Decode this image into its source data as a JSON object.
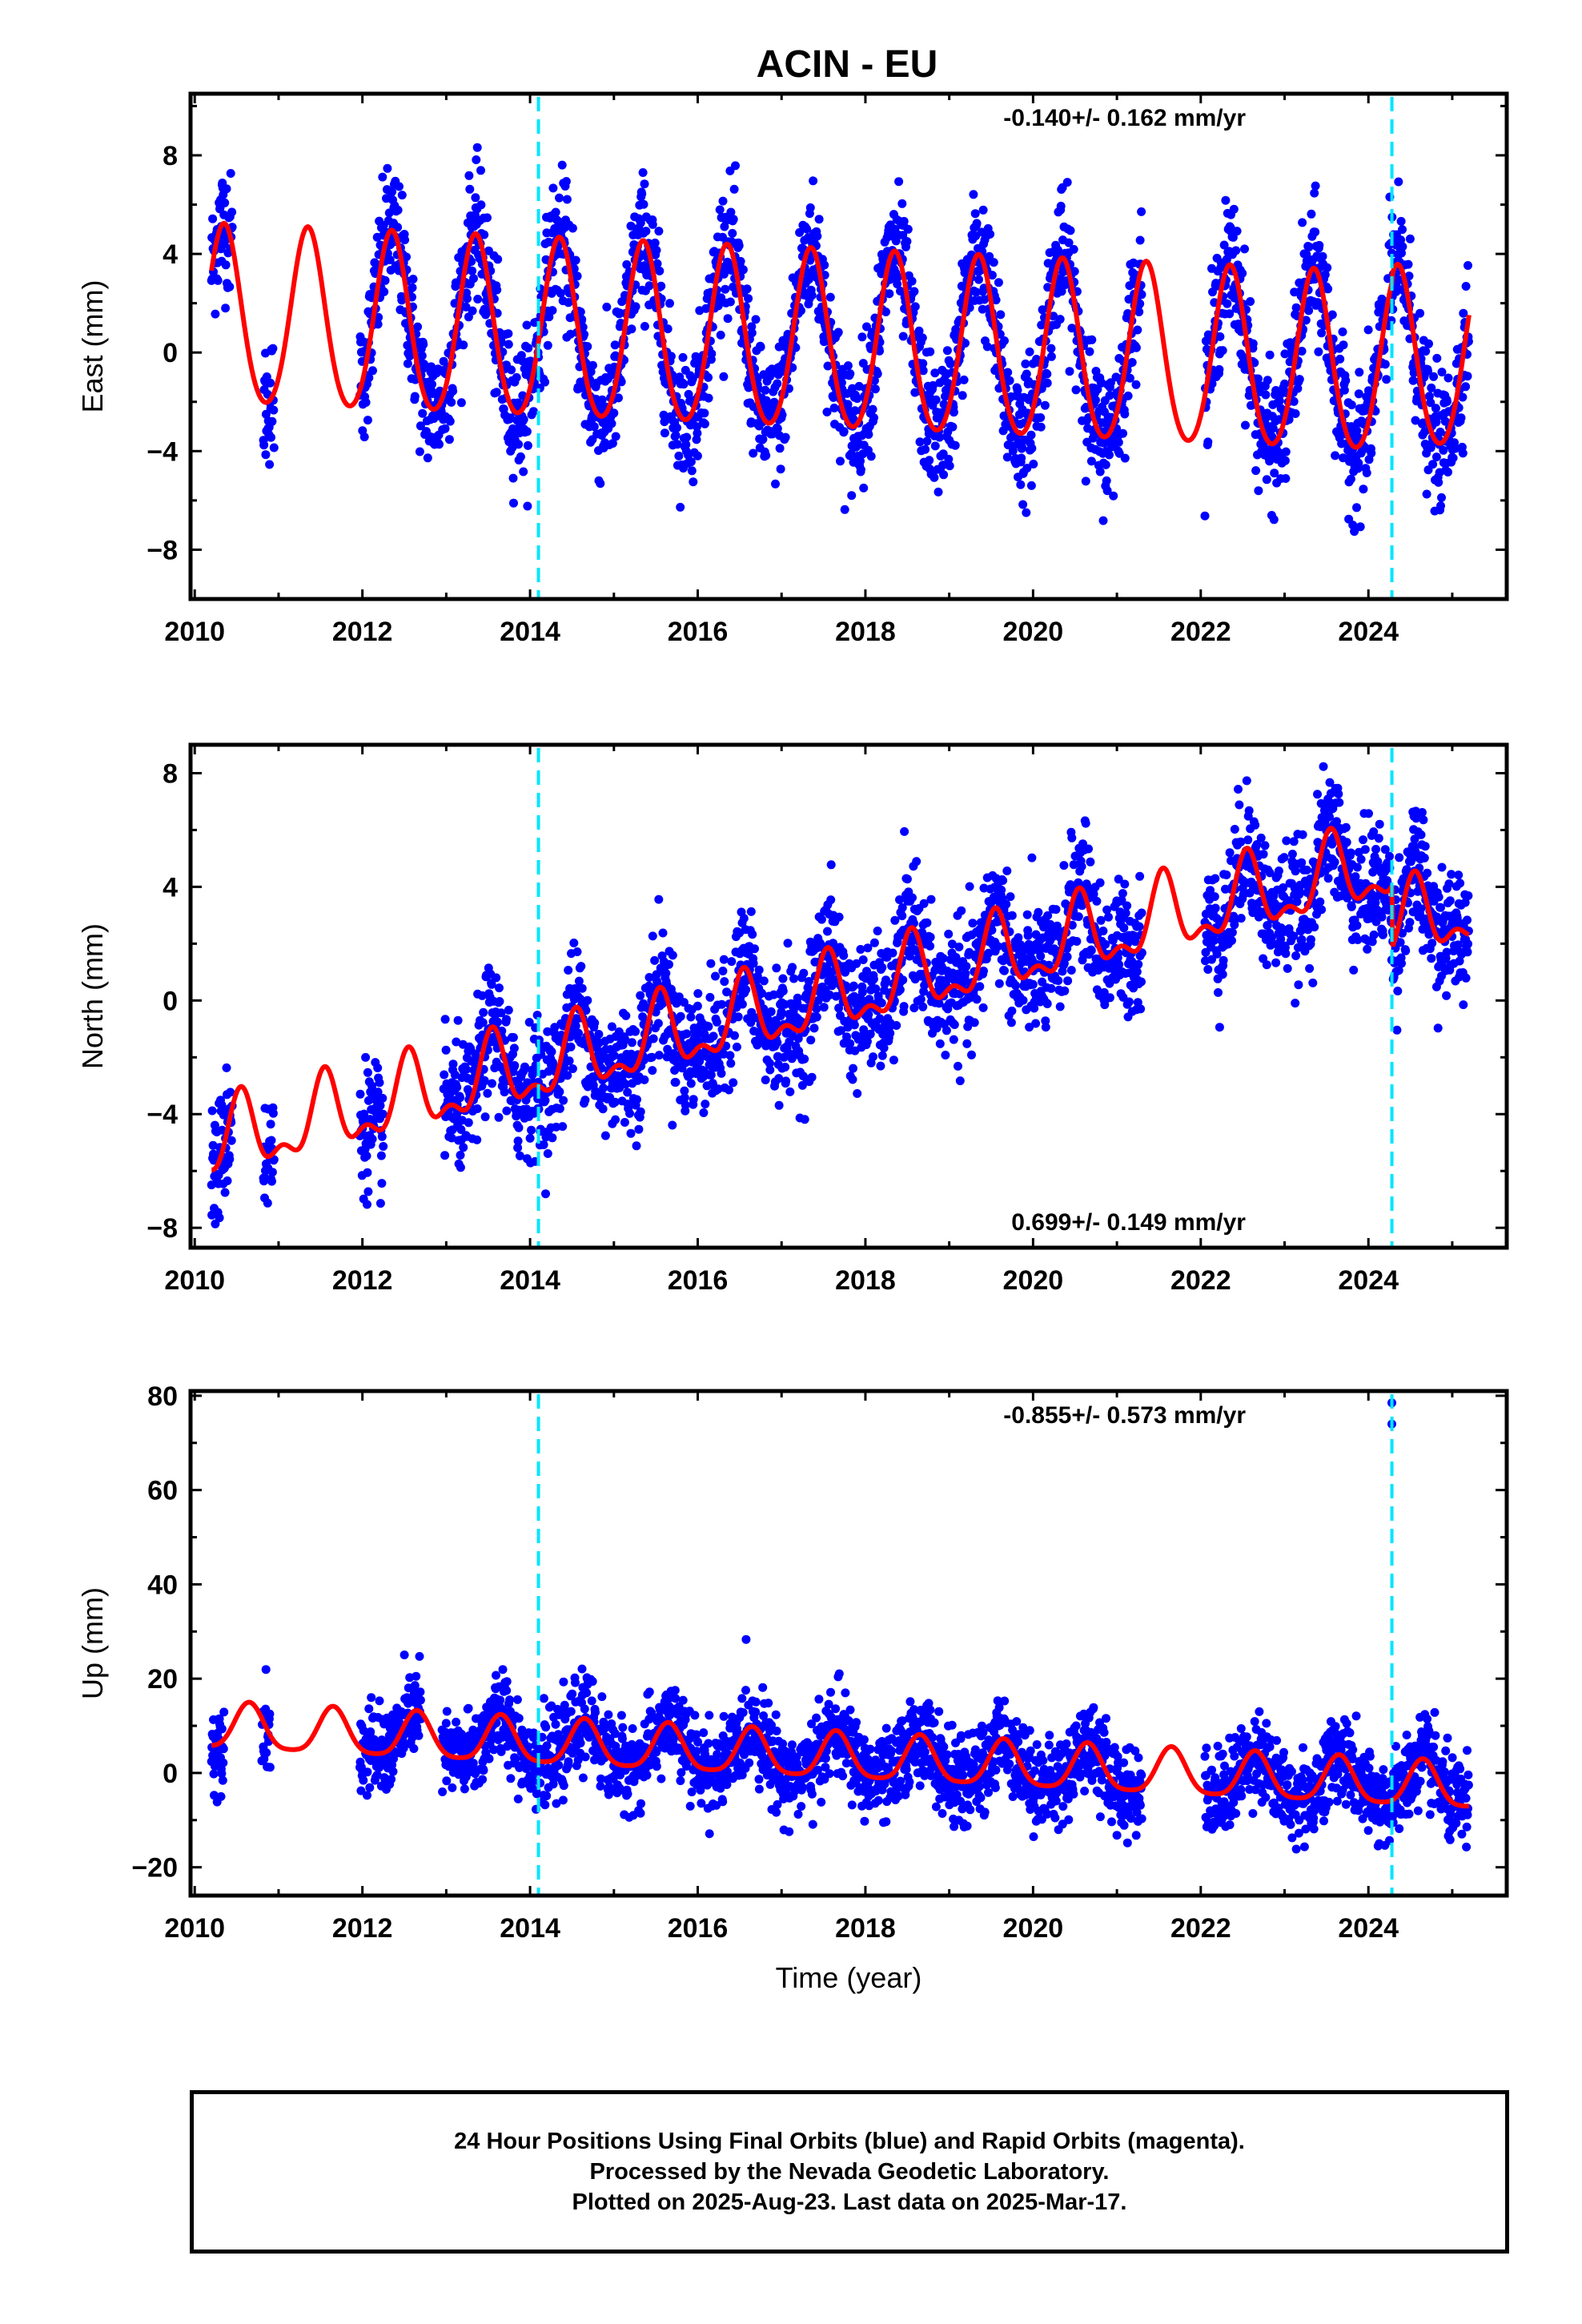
{
  "title": "ACIN - EU",
  "footer": {
    "line1": "24 Hour Positions Using Final Orbits (blue) and Rapid Orbits (magenta).",
    "line2": "Processed by the Nevada Geodetic Laboratory.",
    "line3": "Plotted on 2025-Aug-23. Last data on 2025-Mar-17."
  },
  "colors": {
    "data": "#0000ff",
    "model": "#ff0000",
    "offset": "#00e5ff",
    "frame": "#000000"
  },
  "chart_data": [
    {
      "type": "scatter",
      "name": "east",
      "ylabel": "East (mm)",
      "xlabel": "",
      "xlim": [
        2009.95,
        2025.65
      ],
      "ylim": [
        -10,
        10.5
      ],
      "x_ticks": [
        2010,
        2012,
        2014,
        2016,
        2018,
        2020,
        2022,
        2024
      ],
      "y_ticks": [
        -8,
        -4,
        0,
        4,
        8
      ],
      "y_tick_labels": [
        "−8",
        "−4",
        "0",
        "4",
        "8"
      ],
      "rate_label": "-0.140+/- 0.162 mm/yr",
      "rate_position": "top-right",
      "offset_lines": [
        2014.1,
        2024.28
      ],
      "data_ranges": [
        [
          2010.2,
          2010.45
        ],
        [
          2010.82,
          2010.95
        ],
        [
          2011.97,
          2013.0
        ],
        [
          2013.02,
          2021.3
        ],
        [
          2022.05,
          2025.2
        ]
      ],
      "model": {
        "base": 1.3,
        "rate": -0.14,
        "ref_year": 2010.3,
        "annual_amp": 3.6,
        "phase_year": 2010.35,
        "semi_amp": 0.35,
        "jump": {
          "year": 2024.28,
          "size": 0.3
        }
      },
      "noise_sigma": 1.3
    },
    {
      "type": "scatter",
      "name": "north",
      "ylabel": "North (mm)",
      "xlabel": "",
      "xlim": [
        2009.95,
        2025.65
      ],
      "ylim": [
        -8.7,
        9.0
      ],
      "x_ticks": [
        2010,
        2012,
        2014,
        2016,
        2018,
        2020,
        2022,
        2024
      ],
      "y_ticks": [
        -8,
        -4,
        0,
        4,
        8
      ],
      "y_tick_labels": [
        "−8",
        "−4",
        "0",
        "4",
        "8"
      ],
      "rate_label": "0.699+/- 0.149 mm/yr",
      "rate_position": "bottom-right",
      "offset_lines": [
        2014.1,
        2024.28
      ],
      "data_ranges": [
        [
          2010.2,
          2010.45
        ],
        [
          2010.82,
          2010.95
        ],
        [
          2011.97,
          2012.25
        ],
        [
          2012.97,
          2021.3
        ],
        [
          2022.05,
          2025.2
        ]
      ],
      "model": {
        "base": -5.0,
        "rate": 0.699,
        "ref_year": 2010.3,
        "annual_amp": 1.2,
        "phase_year": 2010.55,
        "semi_amp": 0.6,
        "jump": {
          "year": 2024.28,
          "size": -2.2
        }
      },
      "noise_sigma": 1.1
    },
    {
      "type": "scatter",
      "name": "up",
      "ylabel": "Up (mm)",
      "xlabel": "Time (year)",
      "xlim": [
        2009.95,
        2025.65
      ],
      "ylim": [
        -26,
        81
      ],
      "x_ticks": [
        2010,
        2012,
        2014,
        2016,
        2018,
        2020,
        2022,
        2024
      ],
      "y_ticks": [
        -20,
        0,
        20,
        40,
        60,
        80
      ],
      "y_tick_labels": [
        "−20",
        "0",
        "20",
        "40",
        "60",
        "80"
      ],
      "rate_label": "-0.855+/- 0.573 mm/yr",
      "rate_position": "top-right",
      "offset_lines": [
        2014.1,
        2024.28
      ],
      "data_ranges": [
        [
          2010.2,
          2010.35
        ],
        [
          2010.8,
          2010.9
        ],
        [
          2011.97,
          2012.7
        ],
        [
          2012.95,
          2021.3
        ],
        [
          2022.05,
          2025.2
        ]
      ],
      "model": {
        "base": 9.5,
        "rate": -0.855,
        "ref_year": 2010.3,
        "annual_amp": 4.8,
        "phase_year": 2010.65,
        "semi_amp": 1.0,
        "jump": {
          "year": 2024.28,
          "size": 0
        }
      },
      "noise_sigma": 4.5,
      "outliers": [
        [
          2024.28,
          78.5
        ],
        [
          2024.28,
          74.0
        ]
      ]
    }
  ]
}
